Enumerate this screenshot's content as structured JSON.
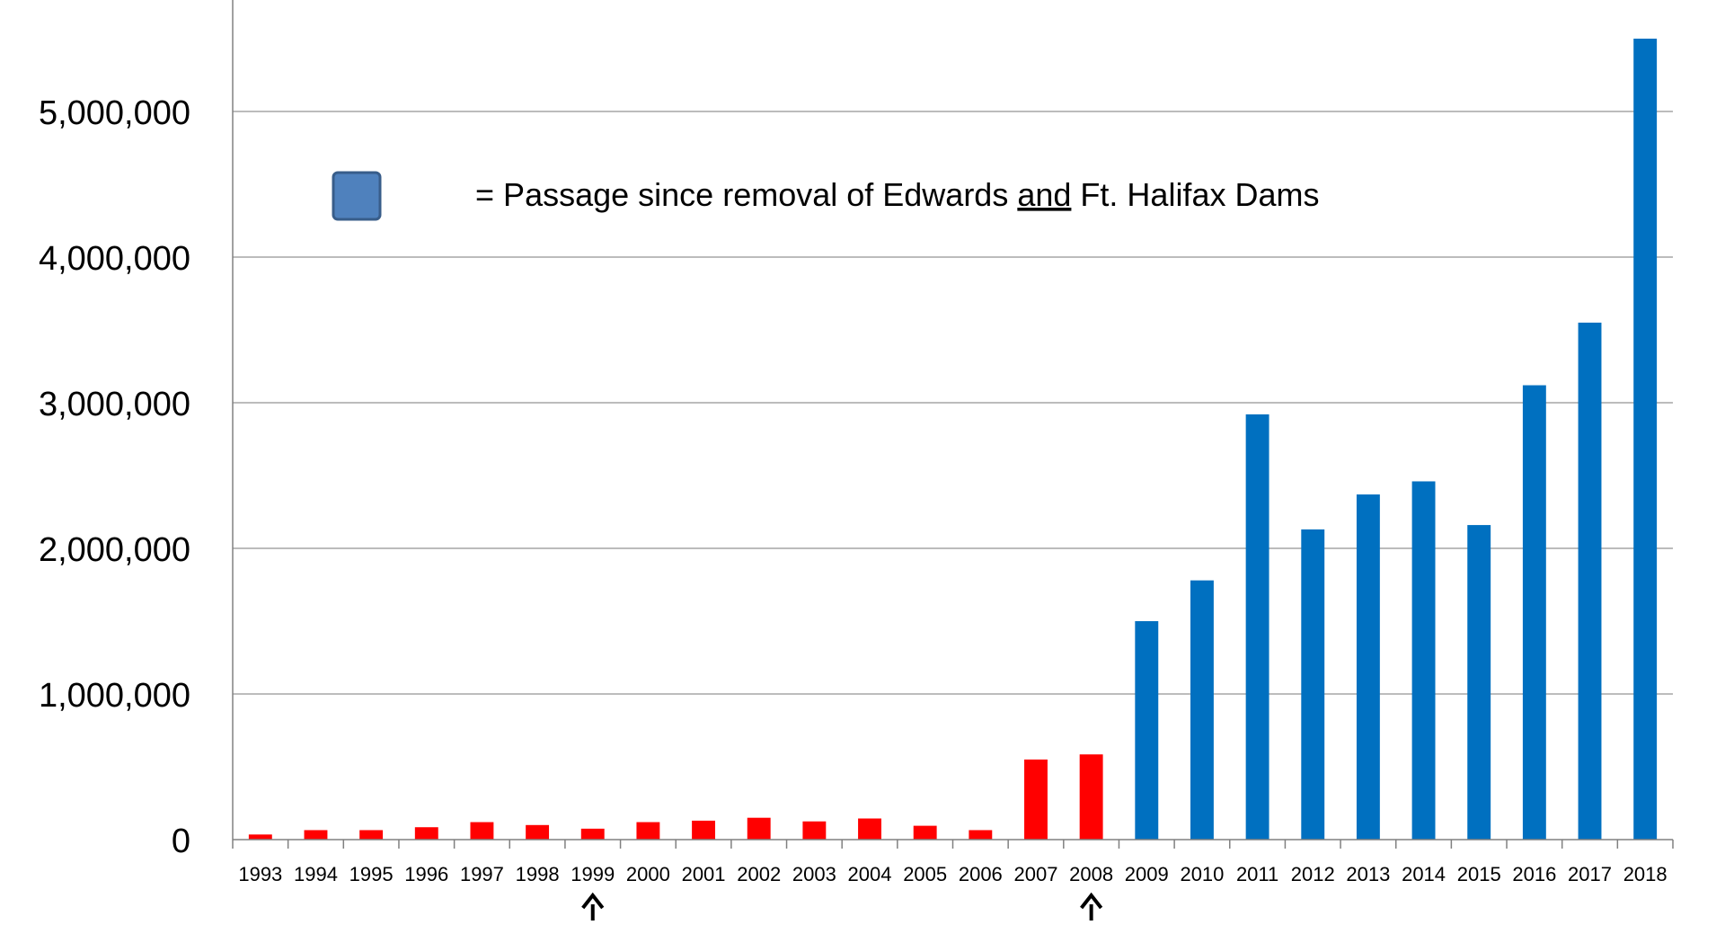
{
  "chart_data": {
    "type": "bar",
    "title": "",
    "xlabel": "",
    "ylabel": "",
    "ylim": [
      0,
      5500000
    ],
    "yticks": [
      0,
      1000000,
      2000000,
      3000000,
      4000000,
      5000000
    ],
    "ytick_labels": [
      "0",
      "1,000,000",
      "2,000,000",
      "3,000,000",
      "4,000,000",
      "5,000,000"
    ],
    "grid": true,
    "categories": [
      "1993",
      "1994",
      "1995",
      "1996",
      "1997",
      "1998",
      "1999",
      "2000",
      "2001",
      "2002",
      "2003",
      "2004",
      "2005",
      "2006",
      "2007",
      "2008",
      "2009",
      "2010",
      "2011",
      "2012",
      "2013",
      "2014",
      "2015",
      "2016",
      "2017",
      "2018"
    ],
    "values": [
      35000,
      65000,
      65000,
      85000,
      120000,
      100000,
      75000,
      120000,
      130000,
      150000,
      125000,
      145000,
      95000,
      65000,
      550000,
      585000,
      1500000,
      1780000,
      2920000,
      2130000,
      2370000,
      2460000,
      2160000,
      3120000,
      3550000,
      5500000
    ],
    "colors": {
      "before": "#ff0000",
      "after": "#0070c0",
      "grid": "#a6a6a6",
      "axis": "#808080",
      "text": "#000000"
    },
    "first_after_index": 16,
    "annotations": {
      "legend_text_before": "= Passage since removal of Edwards ",
      "legend_underlined": "and",
      "legend_text_after": " Ft. Halifax Dams",
      "legend_swatch_color": "#4f81bd",
      "legend_swatch_border": "#385d8a",
      "legend_placement": "top-left",
      "arrow_years": [
        "1999",
        "2008"
      ]
    }
  }
}
